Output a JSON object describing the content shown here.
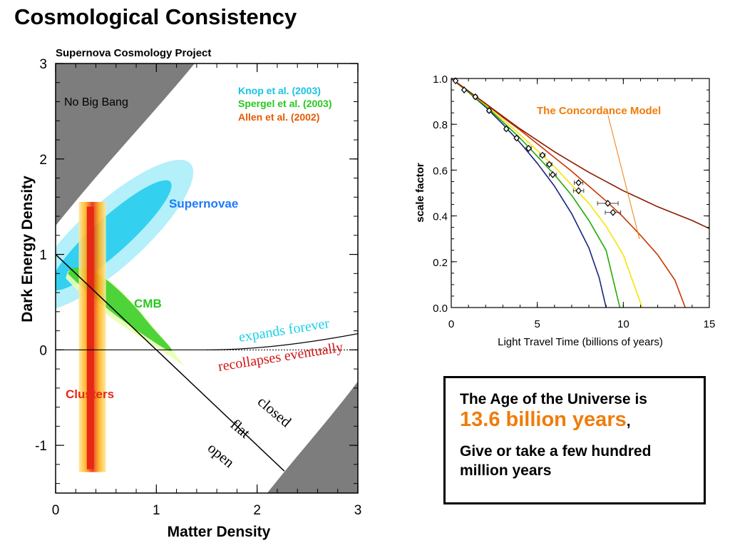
{
  "title": "Cosmological Consistency",
  "chart_data": [
    {
      "type": "contour",
      "title": "Supernova Cosmology Project",
      "xlabel": "Matter Density",
      "ylabel": "Dark Energy Density",
      "xlim": [
        0,
        3
      ],
      "ylim": [
        -1.5,
        3
      ],
      "xticks": [
        "0",
        "1",
        "2",
        "3"
      ],
      "yticks": [
        "-1",
        "0",
        "1",
        "2",
        "3"
      ],
      "legend": [
        {
          "name": "Knop et al. (2003)",
          "color": "#19c3e6"
        },
        {
          "name": "Spergel et al.  (2003)",
          "color": "#28c81e"
        },
        {
          "name": "Allen et al.  (2002)",
          "color": "#e65a00"
        }
      ],
      "regions": [
        {
          "name": "Supernovae",
          "color": "#1e78ff",
          "center": [
            0.55,
            1.2
          ]
        },
        {
          "name": "CMB",
          "color": "#28c81e",
          "center": [
            0.75,
            0.5
          ]
        },
        {
          "name": "Clusters",
          "color": "#e62814",
          "center": [
            0.35,
            0.0
          ]
        }
      ],
      "annotations": [
        {
          "text": "No Big Bang",
          "color": "#000000"
        },
        {
          "text": "expands forever",
          "color": "#19d2e6"
        },
        {
          "text": "recollapses eventually",
          "color": "#d21414"
        },
        {
          "text": "closed",
          "color": "#000000"
        },
        {
          "text": "flat",
          "color": "#000000"
        },
        {
          "text": "open",
          "color": "#000000"
        }
      ]
    },
    {
      "type": "line",
      "title": "",
      "xlabel": "Light Travel Time (billions of years)",
      "ylabel": "scale factor",
      "xlim": [
        0,
        15
      ],
      "ylim": [
        0,
        1.0
      ],
      "xticks": [
        "0",
        "5",
        "10",
        "15"
      ],
      "yticks": [
        "0.0",
        "0.2",
        "0.4",
        "0.6",
        "0.8",
        "1.0"
      ],
      "annotation": {
        "text": "The Concordance Model",
        "color": "#f07c0a"
      },
      "series": [
        {
          "color": "#1a237e",
          "x": [
            0,
            1,
            2,
            3,
            4,
            5,
            6,
            7,
            8,
            8.6,
            9.0
          ],
          "y": [
            1.0,
            0.94,
            0.875,
            0.8,
            0.72,
            0.63,
            0.53,
            0.41,
            0.26,
            0.13,
            0.0
          ]
        },
        {
          "color": "#22aa00",
          "x": [
            0,
            1,
            2,
            3,
            4,
            5,
            6,
            7,
            8,
            9,
            9.8
          ],
          "y": [
            1.0,
            0.94,
            0.88,
            0.81,
            0.74,
            0.66,
            0.58,
            0.49,
            0.38,
            0.25,
            0.0
          ]
        },
        {
          "color": "#f5e600",
          "x": [
            0,
            1,
            2,
            3,
            4,
            5,
            6,
            7,
            8,
            9,
            10,
            11.1
          ],
          "y": [
            1.0,
            0.945,
            0.885,
            0.82,
            0.755,
            0.685,
            0.615,
            0.535,
            0.455,
            0.355,
            0.23,
            0.0
          ]
        },
        {
          "color": "#cc3300",
          "x": [
            0,
            1,
            2,
            3,
            4,
            5,
            6,
            7,
            8,
            9,
            10,
            11,
            12,
            13,
            13.6
          ],
          "y": [
            1.0,
            0.945,
            0.89,
            0.83,
            0.775,
            0.715,
            0.655,
            0.595,
            0.53,
            0.465,
            0.395,
            0.315,
            0.23,
            0.12,
            0.0
          ]
        },
        {
          "color": "#8b1a00",
          "x": [
            0,
            1,
            2,
            3,
            4,
            5,
            6,
            7,
            8,
            9,
            10,
            11,
            12,
            13,
            14,
            15
          ],
          "y": [
            1.0,
            0.945,
            0.89,
            0.835,
            0.78,
            0.73,
            0.68,
            0.635,
            0.59,
            0.55,
            0.51,
            0.475,
            0.44,
            0.41,
            0.38,
            0.345
          ]
        }
      ],
      "points": [
        {
          "x": 0.25,
          "y": 0.99,
          "xerr": 0.05
        },
        {
          "x": 0.75,
          "y": 0.95,
          "xerr": 0.05
        },
        {
          "x": 1.4,
          "y": 0.92,
          "xerr": 0.1
        },
        {
          "x": 2.2,
          "y": 0.86,
          "xerr": 0.1
        },
        {
          "x": 3.2,
          "y": 0.78,
          "xerr": 0.1
        },
        {
          "x": 3.8,
          "y": 0.74,
          "xerr": 0.1
        },
        {
          "x": 4.5,
          "y": 0.695,
          "xerr": 0.15
        },
        {
          "x": 5.3,
          "y": 0.665,
          "xerr": 0.15
        },
        {
          "x": 5.7,
          "y": 0.625,
          "xerr": 0.15
        },
        {
          "x": 5.9,
          "y": 0.58,
          "xerr": 0.2
        },
        {
          "x": 7.4,
          "y": 0.545,
          "xerr": 0.25
        },
        {
          "x": 7.4,
          "y": 0.51,
          "xerr": 0.3
        },
        {
          "x": 9.1,
          "y": 0.455,
          "xerr": 0.6
        },
        {
          "x": 9.4,
          "y": 0.415,
          "xerr": 0.45
        }
      ]
    }
  ],
  "info_box": {
    "line1": "The Age of the Universe is",
    "highlight": "13.6 billion years",
    "comma": ",",
    "line3": "Give or take a few hundred million years"
  }
}
